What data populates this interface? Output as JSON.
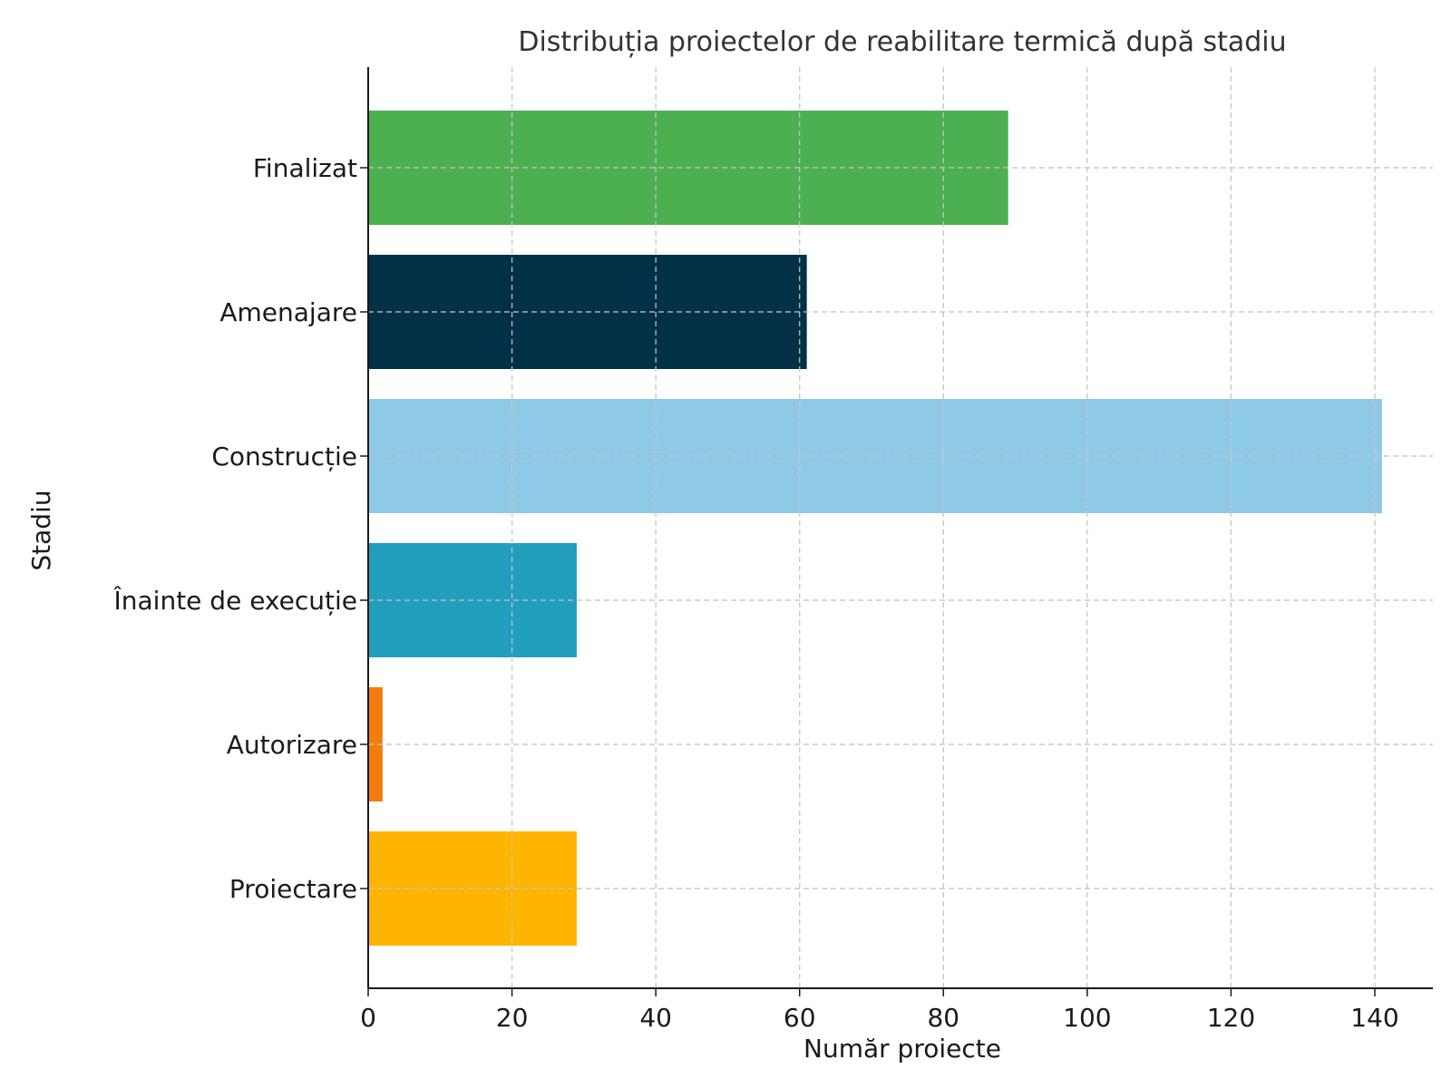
{
  "chart_data": {
    "type": "bar",
    "orientation": "horizontal",
    "title": "Distribuția proiectelor de reabilitare termică după stadiu",
    "xlabel": "Număr proiecte",
    "ylabel": "Stadiu",
    "xlim": [
      0,
      148
    ],
    "x_ticks": [
      0,
      20,
      40,
      60,
      80,
      100,
      120,
      140
    ],
    "grid": true,
    "categories": [
      "Proiectare",
      "Autorizare",
      "Înainte de execuție",
      "Construcție",
      "Amenajare",
      "Finalizat"
    ],
    "values": [
      29,
      2,
      29,
      141,
      61,
      89
    ],
    "colors": [
      "#ffb400",
      "#f27d0c",
      "#219ebc",
      "#8ecae6",
      "#023047",
      "#4caf50"
    ]
  }
}
